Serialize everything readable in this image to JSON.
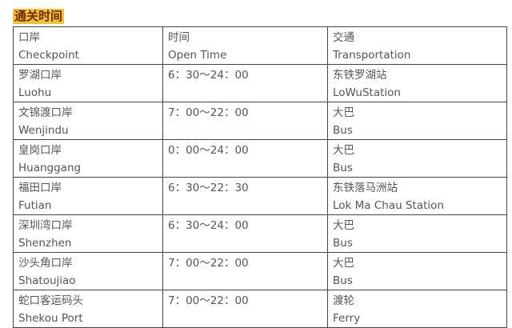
{
  "title": "通关时间",
  "header": {
    "cols": [
      [
        "口岸",
        "Checkpoint"
      ],
      [
        "时间",
        "Open Time"
      ],
      [
        "交通",
        "Transportation"
      ]
    ]
  },
  "rows": [
    {
      "cn": "罗湖口岸",
      "en": "Luohu",
      "time": "6：30～24：00",
      "trans_cn": "东铁罗湖站",
      "trans_en": "LoWuStation"
    },
    {
      "cn": "文锦渡口岸",
      "en": "Wenjindu",
      "time": "7：00～22：00",
      "trans_cn": "大巴",
      "trans_en": "Bus"
    },
    {
      "cn": "皇岗口岸",
      "en": "Huanggang",
      "time": "0：00～24：00",
      "trans_cn": "大巴",
      "trans_en": "Bus"
    },
    {
      "cn": "福田口岸",
      "en": "Futian",
      "time": "6：30～22：30",
      "trans_cn": "东铁落马洲站",
      "trans_en": "Lok Ma Chau Station"
    },
    {
      "cn": "深圳湾口岸",
      "en": "Shenzhen",
      "time": "6：30～24：00",
      "trans_cn": "大巴",
      "trans_en": "Bus"
    },
    {
      "cn": "沙头角口岸",
      "en": "Shatoujiao",
      "time": "7：00～22：00",
      "trans_cn": "大巴",
      "trans_en": "Bus"
    },
    {
      "cn": "蛇口客运码头",
      "en": "Shekou Port",
      "time": "7：00～22：00",
      "trans_cn": "渡轮",
      "trans_en": "Ferry"
    }
  ]
}
